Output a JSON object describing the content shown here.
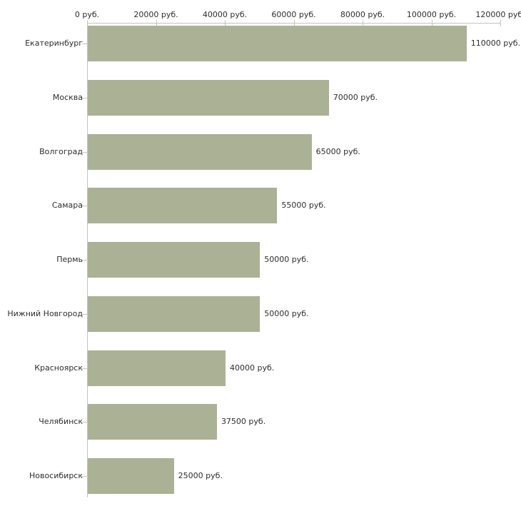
{
  "chart_data": {
    "type": "bar",
    "orientation": "horizontal",
    "title": "",
    "xlabel": "",
    "ylabel": "",
    "xlim": [
      0,
      120000
    ],
    "grid": false,
    "axis_position": "top",
    "categories": [
      "Екатеринбург",
      "Москва",
      "Волгоград",
      "Самара",
      "Пермь",
      "Нижний Новгород",
      "Красноярск",
      "Челябинск",
      "Новосибирск"
    ],
    "values": [
      110000,
      70000,
      65000,
      55000,
      50000,
      50000,
      40000,
      37500,
      25000
    ],
    "bar_value_labels": [
      "110000 руб.",
      "70000 руб.",
      "65000 руб.",
      "55000 руб.",
      "50000 руб.",
      "50000 руб.",
      "40000 руб.",
      "37500 руб.",
      "25000 руб."
    ],
    "x_ticks": [
      {
        "value": 0,
        "label": "0 руб."
      },
      {
        "value": 20000,
        "label": "20000 руб."
      },
      {
        "value": 40000,
        "label": "40000 руб."
      },
      {
        "value": 60000,
        "label": "60000 руб."
      },
      {
        "value": 80000,
        "label": "80000 руб."
      },
      {
        "value": 100000,
        "label": "100000 руб."
      },
      {
        "value": 120000,
        "label": "120000 руб."
      }
    ],
    "colors": {
      "bar": "#abb194",
      "axis": "#c3c3c3",
      "tick": "#ccc8a4",
      "text": "#2e2e2e",
      "background": "#ffffff"
    }
  }
}
